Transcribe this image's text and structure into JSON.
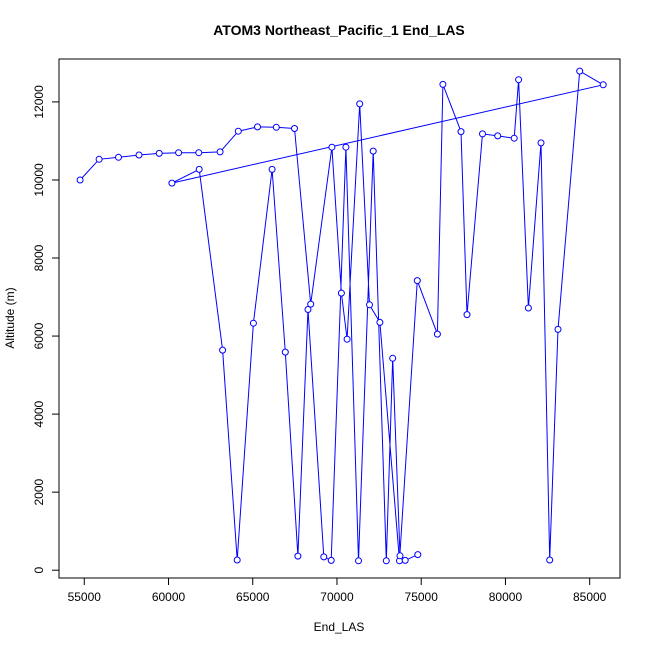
{
  "chart_data": {
    "type": "line",
    "title": "ATOM3 Northeast_Pacific_1 End_LAS",
    "xlabel": "End_LAS",
    "ylabel": "Altitude (m)",
    "xlim": [
      53500,
      86800
    ],
    "ylim": [
      -200,
      13100
    ],
    "x_ticks": [
      55000,
      60000,
      65000,
      70000,
      75000,
      80000,
      85000
    ],
    "y_ticks": [
      0,
      2000,
      4000,
      6000,
      8000,
      10000,
      12000
    ],
    "marker": "open-circle",
    "colors": {
      "series": "#0000ff",
      "axis": "#000000"
    },
    "grid": false,
    "series": [
      {
        "x": [
          54750,
          55880,
          57030,
          58250,
          59450,
          60600,
          61800,
          63060,
          64140,
          65280,
          66400,
          67480,
          68440,
          69700,
          70260,
          70600,
          71350,
          71930,
          72550,
          73710,
          74770,
          75960,
          76290,
          77360,
          77720,
          78640,
          79540,
          80520,
          80780,
          81360,
          82110,
          82630,
          83120,
          84410,
          85800,
          60200,
          61820,
          63210,
          64080,
          65040,
          66150,
          66930,
          67680,
          68280,
          69220,
          69660,
          70530,
          71280,
          72150,
          72930,
          73310,
          73740,
          74050,
          74800
        ],
        "y": [
          10000,
          10530,
          10580,
          10640,
          10680,
          10700,
          10700,
          10720,
          11250,
          11360,
          11350,
          11320,
          6820,
          10840,
          7100,
          5920,
          11950,
          6800,
          6350,
          240,
          7420,
          6050,
          12450,
          11240,
          6550,
          11180,
          11130,
          11070,
          12570,
          6720,
          10950,
          260,
          6170,
          12790,
          12440,
          9920,
          10270,
          5640,
          260,
          6330,
          10270,
          5590,
          360,
          6680,
          340,
          250,
          10840,
          240,
          10740,
          240,
          5430,
          370,
          250,
          400
        ],
        "order": [
          0,
          1,
          2,
          3,
          4,
          5,
          6,
          7,
          8,
          9,
          10,
          11,
          12
        ]
      }
    ]
  }
}
